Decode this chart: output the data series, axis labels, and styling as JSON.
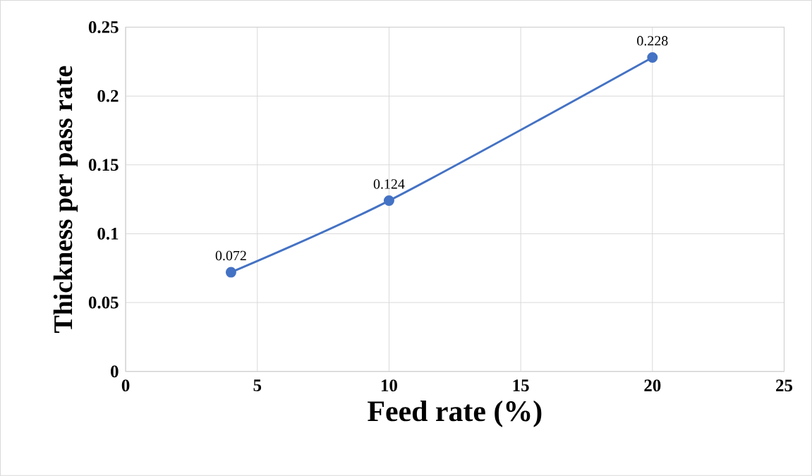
{
  "chart_data": {
    "type": "line",
    "xlabel": "Feed rate (%)",
    "ylabel": "Thickness per pass rate",
    "x": [
      4,
      10,
      20
    ],
    "series": [
      {
        "color": "#4472c4",
        "values": [
          0.072,
          0.124,
          0.228
        ]
      }
    ],
    "xlim": [
      0,
      25
    ],
    "xticks": [
      0,
      5,
      10,
      15,
      20,
      25
    ],
    "ylim": [
      0,
      0.25
    ],
    "yticks": [
      0,
      0.05,
      0.1,
      0.15,
      0.2,
      0.25
    ],
    "grid": true,
    "marker": "circle",
    "line_style": "solid",
    "data_labels": true
  }
}
